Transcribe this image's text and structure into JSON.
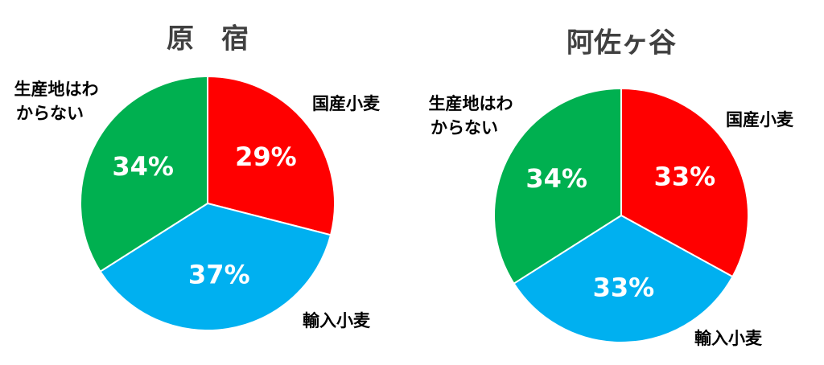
{
  "chart_data": [
    {
      "type": "pie",
      "title": "原　宿",
      "categories": [
        "国産小麦",
        "輸入小麦",
        "生産地はわからない"
      ],
      "values": [
        29,
        37,
        34
      ],
      "value_labels": [
        "29%",
        "37%",
        "34%"
      ],
      "colors": [
        "#ff0000",
        "#00b0f0",
        "#00b050"
      ]
    },
    {
      "type": "pie",
      "title": "阿佐ヶ谷",
      "categories": [
        "国産小麦",
        "輸入小麦",
        "生産地はわからない"
      ],
      "values": [
        33,
        33,
        34
      ],
      "value_labels": [
        "33%",
        "33%",
        "34%"
      ],
      "colors": [
        "#ff0000",
        "#00b0f0",
        "#00b050"
      ]
    }
  ]
}
